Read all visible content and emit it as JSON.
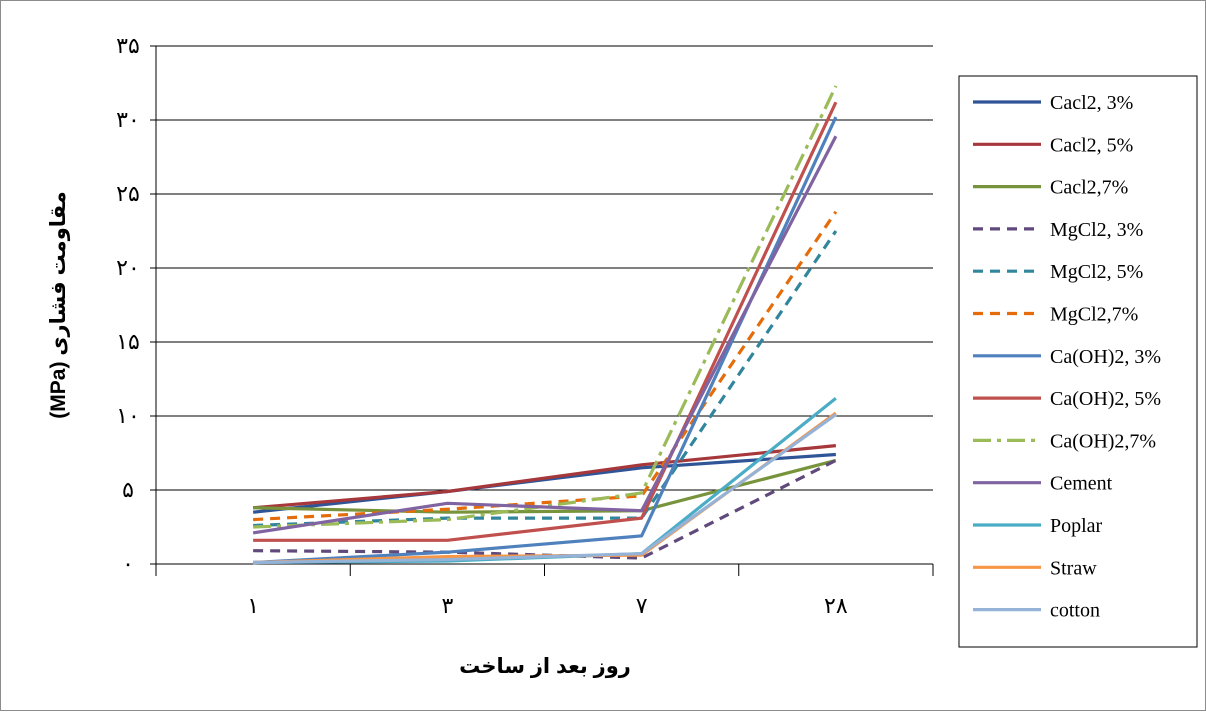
{
  "chart_data": {
    "type": "line",
    "title": "",
    "xlabel": "روز بعد از ساخت",
    "ylabel": "مقاومت فشاری (MPa)",
    "categories": [
      "۱",
      "۳",
      "۷",
      "۲۸"
    ],
    "ylim": [
      0,
      35
    ],
    "yticks": [
      0,
      5,
      10,
      15,
      20,
      25,
      30,
      35
    ],
    "ytick_labels": [
      "۰",
      "۵",
      "۱۰",
      "۱۵",
      "۲۰",
      "۲۵",
      "۳۰",
      "۳۵"
    ],
    "grid": "horizontal major gridlines",
    "legend_position": "right",
    "series": [
      {
        "name": "Cacl2, 3%",
        "color": "#2f5597",
        "dash": "solid",
        "values": [
          3.5,
          4.9,
          6.5,
          7.4
        ]
      },
      {
        "name": "Cacl2, 5%",
        "color": "#a6373a",
        "dash": "solid",
        "values": [
          3.8,
          4.9,
          6.7,
          8.0
        ]
      },
      {
        "name": "Cacl2,7%",
        "color": "#77933c",
        "dash": "solid",
        "values": [
          3.8,
          3.5,
          3.6,
          7.0
        ]
      },
      {
        "name": "MgCl2, 3%",
        "color": "#604a7b",
        "dash": "dashed",
        "values": [
          0.9,
          0.8,
          0.4,
          7.0
        ]
      },
      {
        "name": "MgCl2, 5%",
        "color": "#31859c",
        "dash": "dashed",
        "values": [
          2.6,
          3.1,
          3.1,
          22.5
        ]
      },
      {
        "name": "MgCl2,7%",
        "color": "#e46c0a",
        "dash": "dashed",
        "values": [
          3.0,
          3.7,
          4.6,
          23.8
        ]
      },
      {
        "name": "Ca(OH)2, 3%",
        "color": "#4f81bd",
        "dash": "solid",
        "values": [
          0.1,
          0.8,
          1.9,
          30.2
        ]
      },
      {
        "name": "Ca(OH)2, 5%",
        "color": "#c0504d",
        "dash": "solid",
        "values": [
          1.6,
          1.6,
          3.1,
          31.2
        ]
      },
      {
        "name": "Ca(OH)2,7%",
        "color": "#9bbb59",
        "dash": "dashdot",
        "values": [
          2.5,
          3.0,
          4.8,
          32.3
        ]
      },
      {
        "name": "Cement",
        "color": "#8064a2",
        "dash": "solid",
        "values": [
          2.1,
          4.1,
          3.6,
          28.9
        ]
      },
      {
        "name": "Poplar",
        "color": "#4bacc6",
        "dash": "solid",
        "values": [
          0.1,
          0.2,
          0.7,
          11.2
        ]
      },
      {
        "name": "Straw",
        "color": "#f79646",
        "dash": "solid",
        "values": [
          0.1,
          0.5,
          0.6,
          10.2
        ]
      },
      {
        "name": "cotton",
        "color": "#95b3d7",
        "dash": "solid",
        "values": [
          0.1,
          0.3,
          0.7,
          10.1
        ]
      }
    ]
  }
}
